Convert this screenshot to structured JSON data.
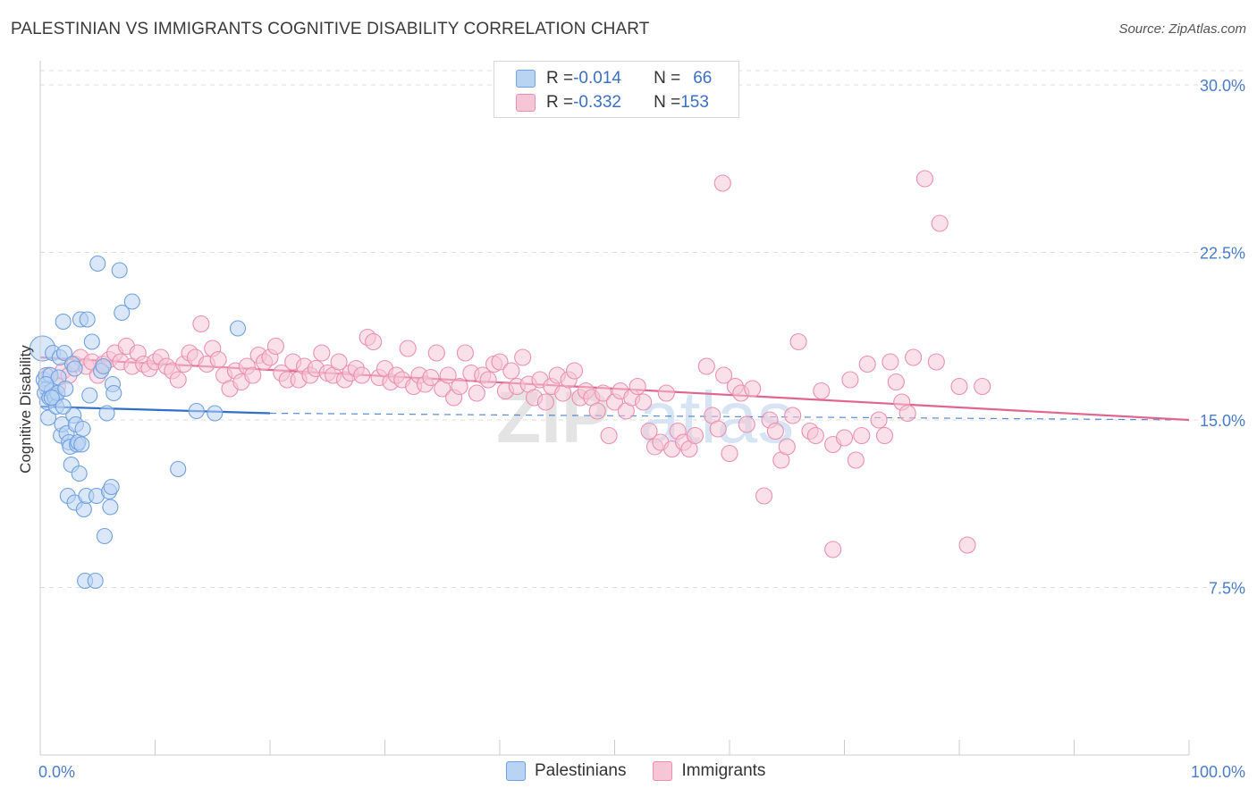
{
  "title": "PALESTINIAN VS IMMIGRANTS COGNITIVE DISABILITY CORRELATION CHART",
  "source": "Source: ZipAtlas.com",
  "watermark": "ZIPatlas",
  "legend": {
    "row1": {
      "r_label": "R = ",
      "r_value": "-0.014",
      "n_label": "N = ",
      "n_value": "66"
    },
    "row2": {
      "r_label": "R = ",
      "r_value": "-0.332",
      "n_label": "N = ",
      "n_value": "153"
    }
  },
  "bottom_legend": {
    "series1": "Palestinians",
    "series2": "Immigrants"
  },
  "colors": {
    "blue": "#6fa0e0",
    "blue_fill": "#b9d3f3",
    "blue_line": "#2f6fc8",
    "pink": "#eb8fb0",
    "pink_fill": "#f6c6d6",
    "pink_line": "#e0668f",
    "grid": "#dddddd",
    "tick_text": "#4a7cc7"
  },
  "chart_data": {
    "type": "scatter",
    "title": "PALESTINIAN VS IMMIGRANTS COGNITIVE DISABILITY CORRELATION CHART",
    "xlabel": "",
    "ylabel": "Cognitive Disability",
    "xlim": [
      0,
      100
    ],
    "ylim": [
      0,
      31
    ],
    "x_tick_labels": [
      "0.0%",
      "100.0%"
    ],
    "y_ticks": [
      7.5,
      15.0,
      22.5,
      30.0
    ],
    "y_tick_labels": [
      "7.5%",
      "15.0%",
      "22.5%",
      "30.0%"
    ],
    "grid": "horizontal dashed",
    "legend_placement": "top-center",
    "series": [
      {
        "name": "Palestinians",
        "R": -0.014,
        "N": 66,
        "trend": {
          "x": [
            0,
            20
          ],
          "y": [
            15.6,
            15.3
          ],
          "extended_to": [
            100,
            15.0
          ]
        },
        "points": [
          [
            0.2,
            18.2
          ],
          [
            0.3,
            16.8
          ],
          [
            0.4,
            16.2
          ],
          [
            0.5,
            17.0
          ],
          [
            0.6,
            15.8
          ],
          [
            0.6,
            16.4
          ],
          [
            0.7,
            15.1
          ],
          [
            0.8,
            16.0
          ],
          [
            0.9,
            17.0
          ],
          [
            1.0,
            16.3
          ],
          [
            1.1,
            18.0
          ],
          [
            1.2,
            16.1
          ],
          [
            1.3,
            16.0
          ],
          [
            1.4,
            15.6
          ],
          [
            1.5,
            16.2
          ],
          [
            1.6,
            16.9
          ],
          [
            1.7,
            17.8
          ],
          [
            1.8,
            14.3
          ],
          [
            1.9,
            14.8
          ],
          [
            2.0,
            19.4
          ],
          [
            2.1,
            18.0
          ],
          [
            2.2,
            16.4
          ],
          [
            2.3,
            14.4
          ],
          [
            2.4,
            11.6
          ],
          [
            2.5,
            14.0
          ],
          [
            2.6,
            13.8
          ],
          [
            2.7,
            13.0
          ],
          [
            2.8,
            17.5
          ],
          [
            2.9,
            15.2
          ],
          [
            3.0,
            11.3
          ],
          [
            3.1,
            14.8
          ],
          [
            3.2,
            13.9
          ],
          [
            3.3,
            14.0
          ],
          [
            3.4,
            12.6
          ],
          [
            3.5,
            19.5
          ],
          [
            3.6,
            13.9
          ],
          [
            3.7,
            14.6
          ],
          [
            3.8,
            11.0
          ],
          [
            3.9,
            7.8
          ],
          [
            4.0,
            11.6
          ],
          [
            4.1,
            19.5
          ],
          [
            4.3,
            16.1
          ],
          [
            4.5,
            18.5
          ],
          [
            4.8,
            7.8
          ],
          [
            4.9,
            11.6
          ],
          [
            5.0,
            22.0
          ],
          [
            5.3,
            17.2
          ],
          [
            5.5,
            17.4
          ],
          [
            5.6,
            9.8
          ],
          [
            5.8,
            15.3
          ],
          [
            6.0,
            11.8
          ],
          [
            6.1,
            11.1
          ],
          [
            6.2,
            12.0
          ],
          [
            6.3,
            16.6
          ],
          [
            6.4,
            16.2
          ],
          [
            6.9,
            21.7
          ],
          [
            7.1,
            19.8
          ],
          [
            8.0,
            20.3
          ],
          [
            12.0,
            12.8
          ],
          [
            13.6,
            15.4
          ],
          [
            15.2,
            15.3
          ],
          [
            17.2,
            19.1
          ],
          [
            0.5,
            16.6
          ],
          [
            1.0,
            16.0
          ],
          [
            2.0,
            15.6
          ],
          [
            3.0,
            17.3
          ]
        ]
      },
      {
        "name": "Immigrants",
        "R": -0.332,
        "N": 153,
        "trend": {
          "x": [
            0,
            100
          ],
          "y": [
            17.8,
            15.0
          ]
        },
        "points": [
          [
            0.8,
            17.0
          ],
          [
            1.5,
            16.5
          ],
          [
            2.0,
            17.2
          ],
          [
            2.5,
            17.0
          ],
          [
            3.0,
            17.5
          ],
          [
            3.5,
            17.8
          ],
          [
            4.0,
            17.4
          ],
          [
            4.5,
            17.6
          ],
          [
            5.0,
            17.0
          ],
          [
            5.5,
            17.5
          ],
          [
            6.0,
            17.7
          ],
          [
            6.5,
            18.0
          ],
          [
            7.0,
            17.6
          ],
          [
            7.5,
            18.3
          ],
          [
            8.0,
            17.4
          ],
          [
            8.5,
            18.0
          ],
          [
            9.0,
            17.5
          ],
          [
            9.5,
            17.3
          ],
          [
            10.0,
            17.6
          ],
          [
            10.5,
            17.8
          ],
          [
            11.0,
            17.4
          ],
          [
            11.5,
            17.2
          ],
          [
            12.0,
            16.8
          ],
          [
            12.5,
            17.5
          ],
          [
            13.0,
            18.0
          ],
          [
            13.5,
            17.8
          ],
          [
            14.0,
            19.3
          ],
          [
            14.5,
            17.5
          ],
          [
            15.0,
            18.2
          ],
          [
            15.5,
            17.7
          ],
          [
            16.0,
            17.0
          ],
          [
            16.5,
            16.4
          ],
          [
            17.0,
            17.2
          ],
          [
            17.5,
            16.7
          ],
          [
            18.0,
            17.4
          ],
          [
            18.5,
            17.0
          ],
          [
            19.0,
            17.9
          ],
          [
            19.5,
            17.6
          ],
          [
            20.0,
            17.8
          ],
          [
            20.5,
            18.3
          ],
          [
            21.0,
            17.1
          ],
          [
            21.5,
            16.8
          ],
          [
            22.0,
            17.6
          ],
          [
            22.5,
            16.8
          ],
          [
            23.0,
            17.4
          ],
          [
            23.5,
            17.0
          ],
          [
            24.0,
            17.3
          ],
          [
            24.5,
            18.0
          ],
          [
            25.0,
            17.1
          ],
          [
            25.5,
            17.0
          ],
          [
            26.0,
            17.6
          ],
          [
            26.5,
            16.8
          ],
          [
            27.0,
            17.1
          ],
          [
            27.5,
            17.3
          ],
          [
            28.0,
            17.0
          ],
          [
            28.5,
            18.7
          ],
          [
            29.0,
            18.5
          ],
          [
            29.5,
            16.9
          ],
          [
            30.0,
            17.3
          ],
          [
            30.5,
            16.7
          ],
          [
            31.0,
            17.0
          ],
          [
            31.5,
            16.8
          ],
          [
            32.0,
            18.2
          ],
          [
            32.5,
            16.5
          ],
          [
            33.0,
            17.0
          ],
          [
            33.5,
            16.6
          ],
          [
            34.0,
            16.9
          ],
          [
            34.5,
            18.0
          ],
          [
            35.0,
            16.4
          ],
          [
            35.5,
            17.0
          ],
          [
            36.0,
            16.0
          ],
          [
            36.5,
            16.5
          ],
          [
            37.0,
            18.0
          ],
          [
            37.5,
            17.1
          ],
          [
            38.0,
            16.2
          ],
          [
            38.5,
            17.0
          ],
          [
            39.0,
            16.8
          ],
          [
            39.5,
            17.5
          ],
          [
            40.0,
            17.6
          ],
          [
            40.5,
            16.3
          ],
          [
            41.0,
            17.2
          ],
          [
            41.5,
            16.5
          ],
          [
            42.0,
            17.8
          ],
          [
            42.5,
            16.6
          ],
          [
            43.0,
            16.0
          ],
          [
            43.5,
            16.8
          ],
          [
            44.0,
            15.8
          ],
          [
            44.5,
            16.5
          ],
          [
            45.0,
            17.0
          ],
          [
            45.5,
            16.2
          ],
          [
            46.0,
            16.8
          ],
          [
            46.5,
            17.2
          ],
          [
            47.0,
            16.0
          ],
          [
            47.5,
            16.3
          ],
          [
            48.0,
            16.0
          ],
          [
            48.5,
            15.4
          ],
          [
            49.0,
            16.2
          ],
          [
            49.5,
            14.3
          ],
          [
            50.0,
            15.8
          ],
          [
            50.5,
            16.3
          ],
          [
            51.0,
            15.4
          ],
          [
            51.5,
            16.0
          ],
          [
            52.0,
            16.5
          ],
          [
            52.5,
            15.8
          ],
          [
            53.0,
            14.5
          ],
          [
            53.5,
            13.8
          ],
          [
            54.0,
            14.0
          ],
          [
            54.5,
            16.2
          ],
          [
            55.0,
            13.7
          ],
          [
            55.5,
            14.5
          ],
          [
            56.0,
            14.0
          ],
          [
            56.5,
            13.7
          ],
          [
            57.0,
            14.3
          ],
          [
            58.0,
            17.4
          ],
          [
            58.5,
            15.2
          ],
          [
            59.0,
            14.6
          ],
          [
            59.5,
            17.0
          ],
          [
            60.0,
            13.5
          ],
          [
            60.5,
            16.5
          ],
          [
            61.0,
            16.2
          ],
          [
            61.5,
            14.8
          ],
          [
            62.0,
            16.4
          ],
          [
            63.0,
            11.6
          ],
          [
            63.5,
            15.0
          ],
          [
            64.0,
            14.5
          ],
          [
            64.5,
            13.2
          ],
          [
            65.0,
            13.8
          ],
          [
            65.5,
            15.2
          ],
          [
            66.0,
            18.5
          ],
          [
            67.0,
            14.5
          ],
          [
            67.5,
            14.3
          ],
          [
            68.0,
            16.3
          ],
          [
            69.0,
            13.9
          ],
          [
            70.0,
            14.2
          ],
          [
            70.5,
            16.8
          ],
          [
            71.0,
            13.2
          ],
          [
            71.5,
            14.3
          ],
          [
            72.0,
            17.5
          ],
          [
            73.0,
            15.0
          ],
          [
            73.5,
            14.3
          ],
          [
            74.0,
            17.6
          ],
          [
            74.5,
            16.7
          ],
          [
            75.0,
            15.8
          ],
          [
            75.5,
            15.3
          ],
          [
            76.0,
            17.8
          ],
          [
            78.0,
            17.6
          ],
          [
            80.0,
            16.5
          ],
          [
            82.0,
            16.5
          ],
          [
            59.4,
            25.6
          ],
          [
            69.0,
            9.2
          ],
          [
            77.0,
            25.8
          ],
          [
            78.3,
            23.8
          ],
          [
            80.7,
            9.4
          ]
        ]
      }
    ]
  }
}
